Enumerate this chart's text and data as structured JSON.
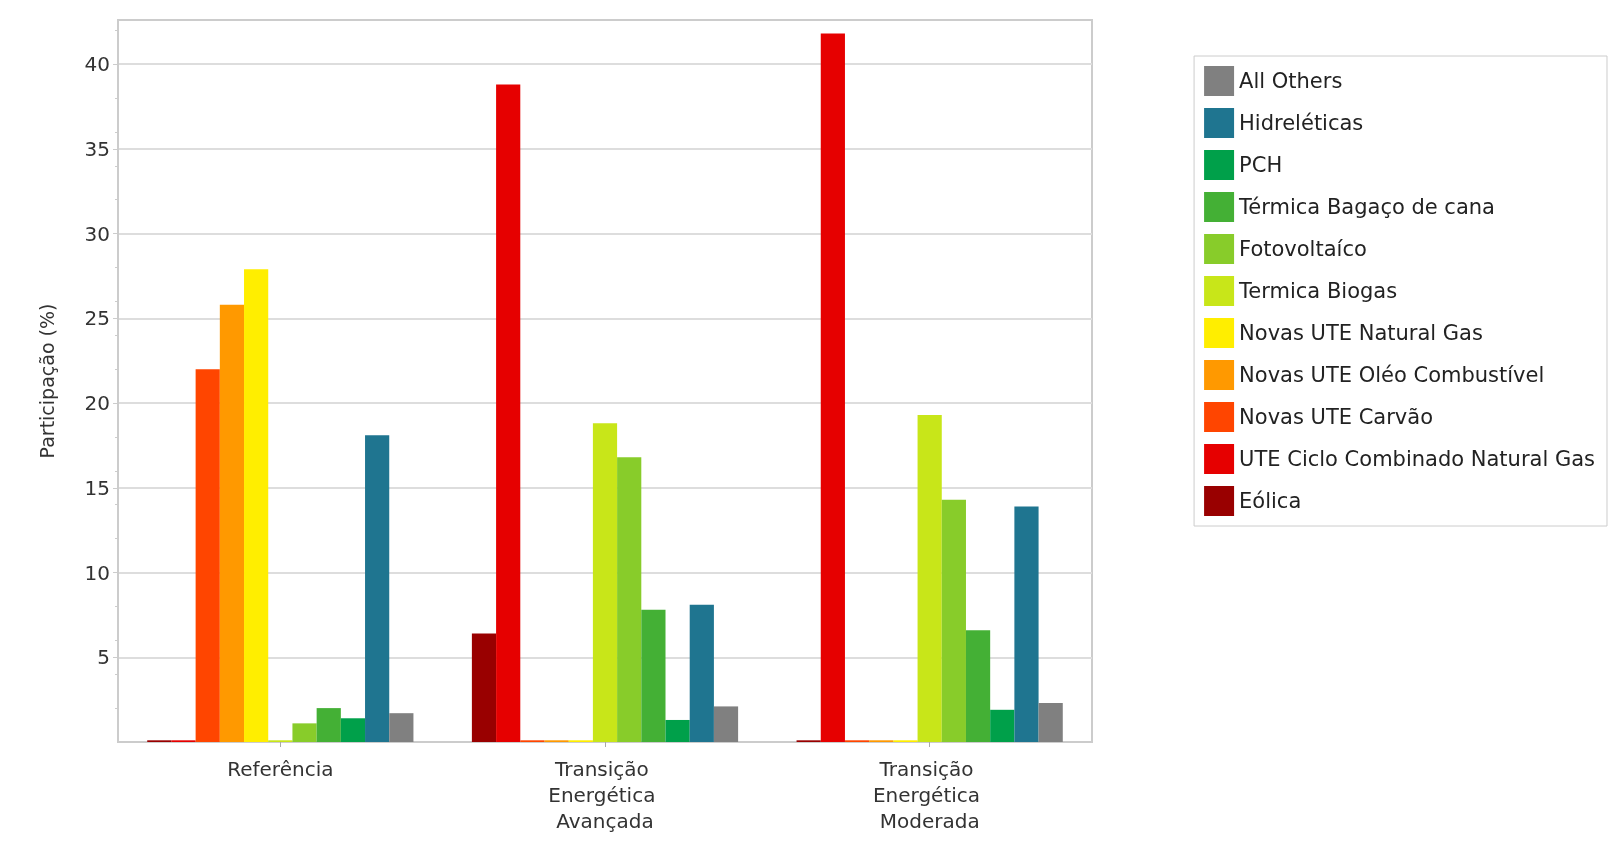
{
  "chart_data": {
    "type": "bar",
    "ylabel": "Participação (%)",
    "categories": [
      "Referência",
      "Transição Energética Avançada",
      "Transição Energética Moderada"
    ],
    "ylim": [
      0,
      42.6
    ],
    "yticks": [
      5,
      10,
      15,
      20,
      25,
      30,
      35,
      40
    ],
    "grid": "y",
    "legend": "top right",
    "series": [
      {
        "name": "Eólica",
        "color": "#990000",
        "values": [
          0.1,
          6.4,
          0.1
        ]
      },
      {
        "name": "UTE Ciclo Combinado Natural Gas",
        "color": "#e60000",
        "values": [
          0.1,
          38.8,
          41.8
        ]
      },
      {
        "name": "Novas UTE Carvão",
        "color": "#ff4500",
        "values": [
          22.0,
          0.1,
          0.1
        ]
      },
      {
        "name": "Novas UTE Oléo Combustível",
        "color": "#ff9900",
        "values": [
          25.8,
          0.1,
          0.1
        ]
      },
      {
        "name": "Novas UTE Natural Gas",
        "color": "#ffee00",
        "values": [
          27.9,
          0.1,
          0.1
        ]
      },
      {
        "name": "Termica Biogas",
        "color": "#c8e619",
        "values": [
          0.1,
          18.8,
          19.3
        ]
      },
      {
        "name": "Fotovoltaíco",
        "color": "#88cc2a",
        "values": [
          1.1,
          16.8,
          14.3
        ]
      },
      {
        "name": "Térmica Bagaço de cana",
        "color": "#44b035",
        "values": [
          2.0,
          7.8,
          6.6
        ]
      },
      {
        "name": "PCH",
        "color": "#00a04a",
        "values": [
          1.4,
          1.3,
          1.9
        ]
      },
      {
        "name": "Hidreléticas",
        "color": "#1f7590",
        "values": [
          18.1,
          8.1,
          13.9
        ]
      },
      {
        "name": "All Others",
        "color": "#808080",
        "values": [
          1.7,
          2.1,
          2.3
        ]
      }
    ]
  }
}
